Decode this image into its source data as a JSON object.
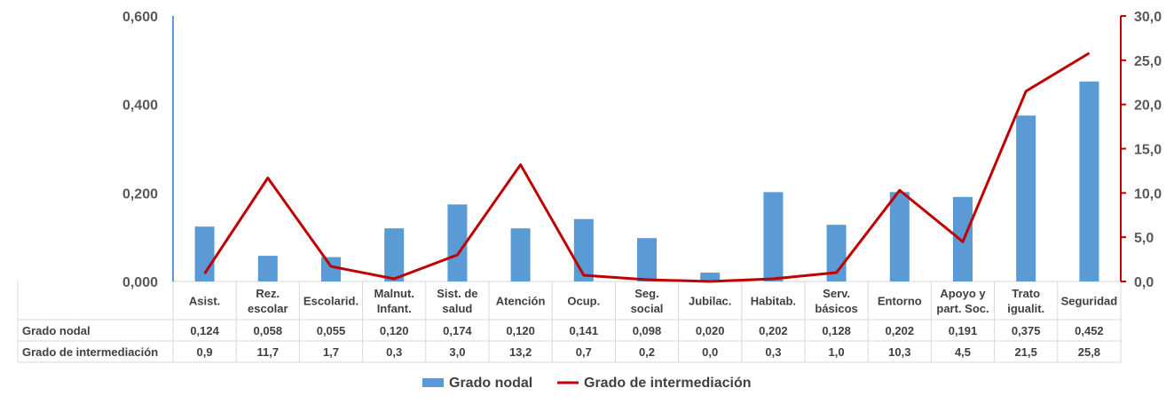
{
  "chart_data": {
    "type": "bar",
    "categories": [
      [
        "Asist."
      ],
      [
        "Rez.",
        "escolar"
      ],
      [
        "Escolarid."
      ],
      [
        "Malnut.",
        "Infant."
      ],
      [
        "Sist. de",
        "salud"
      ],
      [
        "Atención"
      ],
      [
        "Ocup."
      ],
      [
        "Seg.",
        "social"
      ],
      [
        "Jubilac."
      ],
      [
        "Habitab."
      ],
      [
        "Serv.",
        "básicos"
      ],
      [
        "Entorno"
      ],
      [
        "Apoyo y",
        "part. Soc."
      ],
      [
        "Trato",
        "igualit."
      ],
      [
        "Seguridad"
      ]
    ],
    "series": [
      {
        "name": "Grado nodal",
        "type": "bar",
        "axis": "left",
        "color": "#5b9bd5",
        "values": [
          0.124,
          0.058,
          0.055,
          0.12,
          0.174,
          0.12,
          0.141,
          0.098,
          0.02,
          0.202,
          0.128,
          0.202,
          0.191,
          0.375,
          0.452
        ],
        "labels": [
          "0,124",
          "0,058",
          "0,055",
          "0,120",
          "0,174",
          "0,120",
          "0,141",
          "0,098",
          "0,020",
          "0,202",
          "0,128",
          "0,202",
          "0,191",
          "0,375",
          "0,452"
        ]
      },
      {
        "name": "Grado de intermediación",
        "type": "line",
        "axis": "right",
        "color": "#c00000",
        "values": [
          0.9,
          11.7,
          1.7,
          0.3,
          3.0,
          13.2,
          0.7,
          0.2,
          0.0,
          0.3,
          1.0,
          10.3,
          4.5,
          21.5,
          25.8
        ],
        "labels": [
          "0,9",
          "11,7",
          "1,7",
          "0,3",
          "3,0",
          "13,2",
          "0,7",
          "0,2",
          "0,0",
          "0,3",
          "1,0",
          "10,3",
          "4,5",
          "21,5",
          "25,8"
        ]
      }
    ],
    "y_left": {
      "range": [
        0,
        0.6
      ],
      "ticks": [
        0,
        0.2,
        0.4,
        0.6
      ],
      "tick_labels": [
        "0,000",
        "0,200",
        "0,400",
        "0,600"
      ],
      "color": "#5b9bd5"
    },
    "y_right": {
      "range": [
        0,
        30
      ],
      "ticks": [
        0,
        5,
        10,
        15,
        20,
        25,
        30
      ],
      "tick_labels": [
        "0,0",
        "5,0",
        "10,0",
        "15,0",
        "20,0",
        "25,0",
        "30,0"
      ],
      "color": "#c00000"
    },
    "grid": false,
    "legend_position": "bottom",
    "data_table": true
  }
}
